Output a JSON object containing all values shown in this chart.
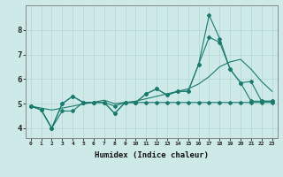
{
  "xlabel": "Humidex (Indice chaleur)",
  "x_ticks": [
    0,
    1,
    2,
    3,
    4,
    5,
    6,
    7,
    8,
    9,
    10,
    11,
    12,
    13,
    14,
    15,
    16,
    17,
    18,
    19,
    20,
    21,
    22,
    23
  ],
  "y_ticks": [
    4,
    5,
    6,
    7,
    8
  ],
  "xlim": [
    -0.5,
    23.5
  ],
  "ylim": [
    3.6,
    9.0
  ],
  "bg_color": "#ceeae8",
  "grid_color": "#b8d8d6",
  "line_color": "#1a7a6e",
  "series1": [
    4.9,
    4.75,
    4.0,
    5.0,
    5.3,
    5.05,
    5.05,
    5.05,
    4.9,
    5.05,
    5.05,
    5.05,
    5.05,
    5.05,
    5.05,
    5.05,
    5.05,
    5.05,
    5.05,
    5.05,
    5.05,
    5.05,
    5.05,
    5.05
  ],
  "series2": [
    4.9,
    4.75,
    4.0,
    4.7,
    4.7,
    5.05,
    5.05,
    5.05,
    4.6,
    5.05,
    5.05,
    5.4,
    5.6,
    5.35,
    5.5,
    5.5,
    6.6,
    7.7,
    7.5,
    6.4,
    5.85,
    5.1,
    5.1,
    5.1
  ],
  "series3": [
    4.9,
    4.75,
    4.0,
    5.0,
    5.3,
    5.05,
    5.05,
    5.05,
    4.6,
    5.05,
    5.05,
    5.4,
    5.6,
    5.35,
    5.5,
    5.5,
    6.6,
    8.6,
    7.65,
    6.4,
    5.85,
    5.9,
    5.1,
    5.1
  ],
  "trend": [
    4.9,
    4.82,
    4.74,
    4.82,
    4.9,
    4.98,
    5.06,
    5.14,
    5.0,
    5.05,
    5.1,
    5.2,
    5.3,
    5.4,
    5.5,
    5.6,
    5.8,
    6.1,
    6.5,
    6.7,
    6.8,
    6.4,
    5.9,
    5.5
  ]
}
